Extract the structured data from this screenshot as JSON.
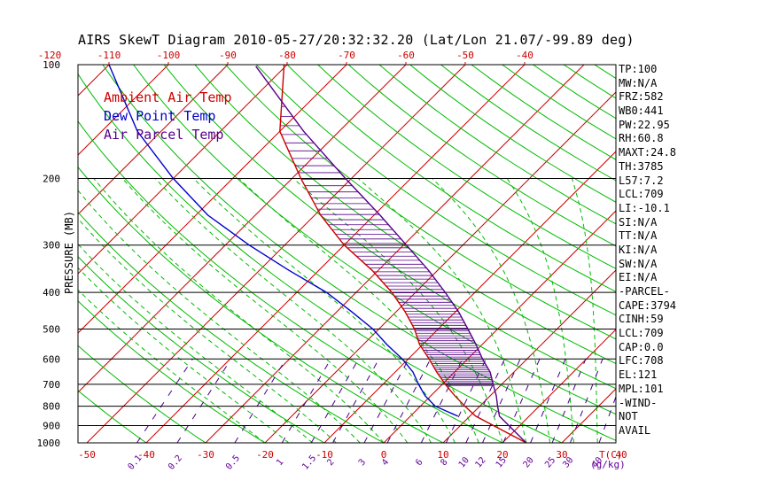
{
  "colors": {
    "ambient": "#cc0000",
    "dewpoint": "#0000cc",
    "parcel": "#550088",
    "isotherm": "#cc0000",
    "dry_adiabat": "#00bb00",
    "moist_adiabat": "#00bb00",
    "mixing_ratio": "#440088",
    "isobar": "#000000",
    "axis_text": "#000000",
    "top_scale_text": "#cc0000",
    "bottom_scale_text": "#cc0000",
    "mixing_scale_text": "#660099"
  },
  "chart_data": {
    "type": "line",
    "title": "AIRS SkewT Diagram 2010-05-27/20:32:32.20 (Lat/Lon 21.07/-99.89 deg)",
    "ylabel": "PRESSURE (MB)",
    "y_scale": "log",
    "ylim": [
      1000,
      100
    ],
    "pressure_ticks": [
      "100",
      "200",
      "300",
      "400",
      "500",
      "600",
      "700",
      "800",
      "900",
      "1000"
    ],
    "top_temp_ticks": [
      "-120",
      "-110",
      "-100",
      "-90",
      "-80",
      "-70",
      "-60",
      "-50",
      "-40"
    ],
    "bottom_temp_ticks": [
      "-50",
      "-40",
      "-30",
      "-20",
      "-10",
      "0",
      "10",
      "20",
      "30",
      "40"
    ],
    "bottom_temp_label": "T(C)",
    "mixing_ratio_ticks": [
      "0.1",
      "0.2",
      "0.5",
      "1",
      "1.5",
      "2",
      "3",
      "4",
      "6",
      "8",
      "10",
      "12",
      "15",
      "20",
      "25",
      "30",
      "40"
    ],
    "mixing_ratio_label": "(g/kg)",
    "grid": true,
    "legend": [
      "Ambient Air Temp",
      "Dew Point Temp",
      "Air Parcel Temp"
    ],
    "series": [
      {
        "name": "Ambient Air Temp",
        "points": [
          [
            1000,
            24.0
          ],
          [
            850,
            11.0
          ],
          [
            800,
            7.5
          ],
          [
            750,
            4.0
          ],
          [
            700,
            0.5
          ],
          [
            650,
            -3.0
          ],
          [
            600,
            -6.5
          ],
          [
            550,
            -10.5
          ],
          [
            500,
            -14.0
          ],
          [
            450,
            -18.5
          ],
          [
            400,
            -24.0
          ],
          [
            350,
            -31.0
          ],
          [
            300,
            -40.0
          ],
          [
            250,
            -49.0
          ],
          [
            200,
            -58.5
          ],
          [
            150,
            -70.0
          ],
          [
            100,
            -80.5
          ]
        ]
      },
      {
        "name": "Dew Point Temp",
        "points": [
          [
            850,
            8.0
          ],
          [
            800,
            2.5
          ],
          [
            750,
            -1.0
          ],
          [
            700,
            -4.0
          ],
          [
            650,
            -7.0
          ],
          [
            600,
            -11.0
          ],
          [
            550,
            -16.0
          ],
          [
            500,
            -21.0
          ],
          [
            450,
            -27.5
          ],
          [
            400,
            -35.0
          ],
          [
            350,
            -45.0
          ],
          [
            300,
            -56.0
          ],
          [
            250,
            -68.0
          ],
          [
            200,
            -80.0
          ],
          [
            150,
            -94.0
          ],
          [
            100,
            -110.0
          ]
        ]
      },
      {
        "name": "Air Parcel Temp",
        "points": [
          [
            1000,
            24.0
          ],
          [
            850,
            15.0
          ],
          [
            800,
            13.0
          ],
          [
            750,
            11.0
          ],
          [
            709,
            9.0
          ],
          [
            650,
            6.0
          ],
          [
            600,
            2.5
          ],
          [
            550,
            -1.0
          ],
          [
            500,
            -5.0
          ],
          [
            450,
            -9.5
          ],
          [
            400,
            -15.0
          ],
          [
            350,
            -21.5
          ],
          [
            300,
            -29.5
          ],
          [
            250,
            -39.0
          ],
          [
            200,
            -51.0
          ],
          [
            150,
            -66.0
          ],
          [
            101,
            -85.0
          ]
        ]
      }
    ]
  },
  "side_panel": [
    "TP:100",
    "MW:N/A",
    "FRZ:582",
    "WB0:441",
    "PW:22.95",
    "RH:60.8",
    "MAXT:24.8",
    "TH:3785",
    "L57:7.2",
    "LCL:709",
    "LI:-10.1",
    "SI:N/A",
    "TT:N/A",
    "KI:N/A",
    "SW:N/A",
    "EI:N/A",
    "-PARCEL-",
    "CAPE:3794",
    "CINH:59",
    "LCL:709",
    "CAP:0.0",
    "LFC:708",
    "EL:121",
    "MPL:101",
    "-WIND-",
    "NOT",
    "AVAIL"
  ]
}
